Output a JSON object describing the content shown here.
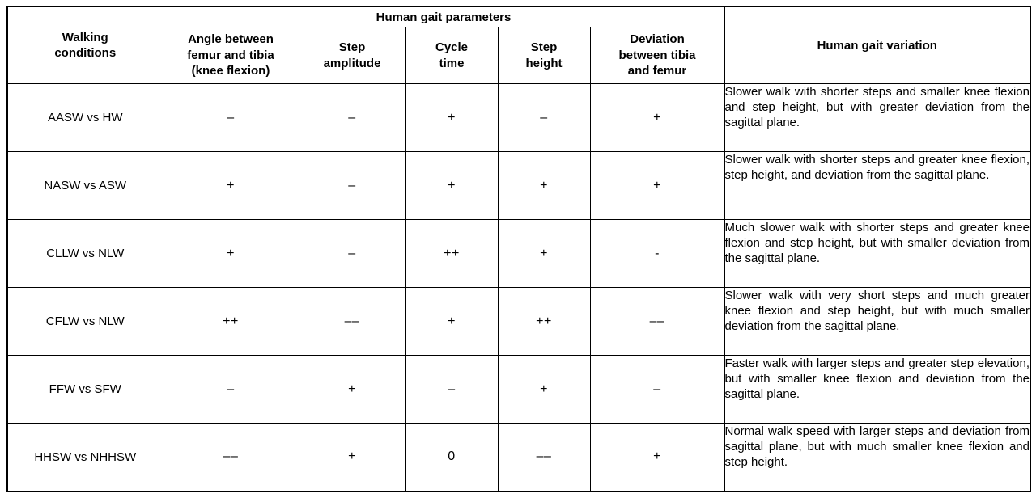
{
  "table": {
    "header": {
      "walking_conditions": "Walking\nconditions",
      "group_title": "Human gait parameters",
      "parameters": [
        "Angle between\nfemur and tibia\n(knee flexion)",
        "Step\namplitude",
        "Cycle\ntime",
        "Step\nheight",
        "Deviation\nbetween tibia\nand femur"
      ],
      "variation": "Human gait variation"
    },
    "rows": [
      {
        "condition": "AASW vs HW",
        "values": [
          "–",
          "–",
          "+",
          "–",
          "+"
        ],
        "variation": "Slower walk with shorter steps and smaller knee flexion and step height, but with greater deviation from the sagittal plane."
      },
      {
        "condition": "NASW vs ASW",
        "values": [
          "+",
          "–",
          "+",
          "+",
          "+"
        ],
        "variation": "Slower walk with shorter steps and greater knee flexion, step height, and deviation from the sagittal plane."
      },
      {
        "condition": "CLLW vs NLW",
        "values": [
          "+",
          "–",
          "++",
          "+",
          "-"
        ],
        "variation": "Much slower walk with shorter steps and greater knee flexion and step height, but with smaller deviation from the sagittal plane."
      },
      {
        "condition": "CFLW vs NLW",
        "values": [
          "++",
          "––",
          "+",
          "++",
          "––"
        ],
        "variation": "Slower walk with very short steps and much greater knee flexion and step height, but with much smaller deviation from the sagittal plane."
      },
      {
        "condition": "FFW vs SFW",
        "values": [
          "–",
          "+",
          "–",
          "+",
          "–"
        ],
        "variation": "Faster walk with larger steps and greater step elevation, but with smaller knee flexion and deviation from the sagittal plane."
      },
      {
        "condition": "HHSW vs NHHSW",
        "values": [
          "––",
          "+",
          "0",
          "––",
          "+"
        ],
        "variation": "Normal walk speed with larger steps and deviation from sagittal plane, but with much smaller knee flexion and step height."
      }
    ]
  }
}
